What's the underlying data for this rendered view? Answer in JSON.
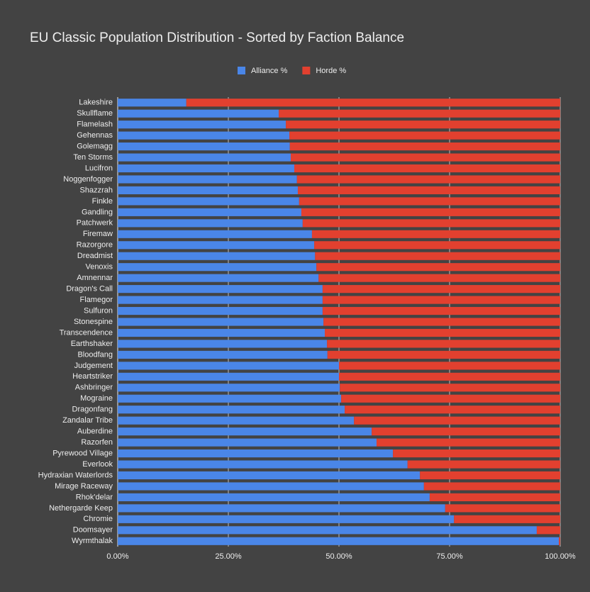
{
  "chart_data": {
    "type": "stacked-bar-horizontal",
    "title": "EU Classic Population Distribution - Sorted by Faction Balance",
    "categories": [
      "Lakeshire",
      "Skullflame",
      "Flamelash",
      "Gehennas",
      "Golemagg",
      "Ten Storms",
      "Lucifron",
      "Noggenfogger",
      "Shazzrah",
      "Finkle",
      "Gandling",
      "Patchwerk",
      "Firemaw",
      "Razorgore",
      "Dreadmist",
      "Venoxis",
      "Amnennar",
      "Dragon's Call",
      "Flamegor",
      "Sulfuron",
      "Stonespine",
      "Transcendence",
      "Earthshaker",
      "Bloodfang",
      "Judgement",
      "Heartstriker",
      "Ashbringer",
      "Mograine",
      "Dragonfang",
      "Zandalar Tribe",
      "Auberdine",
      "Razorfen",
      "Pyrewood Village",
      "Everlook",
      "Hydraxian Waterlords",
      "Mirage Raceway",
      "Rhok'delar",
      "Nethergarde Keep",
      "Chromie",
      "Doomsayer",
      "Wyrmthalak"
    ],
    "series": [
      {
        "name": "Alliance %",
        "color": "#4a86e8",
        "values": [
          15.5,
          36.4,
          38.0,
          38.8,
          38.9,
          39.1,
          39.9,
          40.5,
          40.7,
          41.0,
          41.5,
          41.8,
          43.9,
          44.4,
          44.6,
          44.9,
          45.4,
          46.3,
          46.3,
          46.3,
          46.5,
          46.8,
          47.3,
          47.4,
          50.0,
          50.0,
          50.2,
          50.5,
          51.3,
          53.4,
          57.4,
          58.5,
          62.2,
          65.5,
          68.3,
          69.2,
          70.5,
          74.0,
          76.0,
          94.7,
          99.7
        ]
      },
      {
        "name": "Horde %",
        "color": "#e2402f",
        "values": [
          84.5,
          63.6,
          62.0,
          61.2,
          61.1,
          60.9,
          60.1,
          59.5,
          59.3,
          59.0,
          58.5,
          58.2,
          56.1,
          55.6,
          55.4,
          55.1,
          54.6,
          53.7,
          53.7,
          53.7,
          53.5,
          53.2,
          52.7,
          52.6,
          50.0,
          50.0,
          49.8,
          49.5,
          48.7,
          46.6,
          42.6,
          41.5,
          37.8,
          34.5,
          31.7,
          30.8,
          29.5,
          26.0,
          24.0,
          5.3,
          0.3
        ]
      }
    ],
    "xlim": [
      0,
      100
    ],
    "xticks": [
      {
        "value": 0,
        "label": "0.00%"
      },
      {
        "value": 25,
        "label": "25.00%"
      },
      {
        "value": 50,
        "label": "50.00%"
      },
      {
        "value": 75,
        "label": "75.00%"
      },
      {
        "value": 100,
        "label": "100.00%"
      }
    ],
    "grid": true,
    "legend": "top"
  }
}
